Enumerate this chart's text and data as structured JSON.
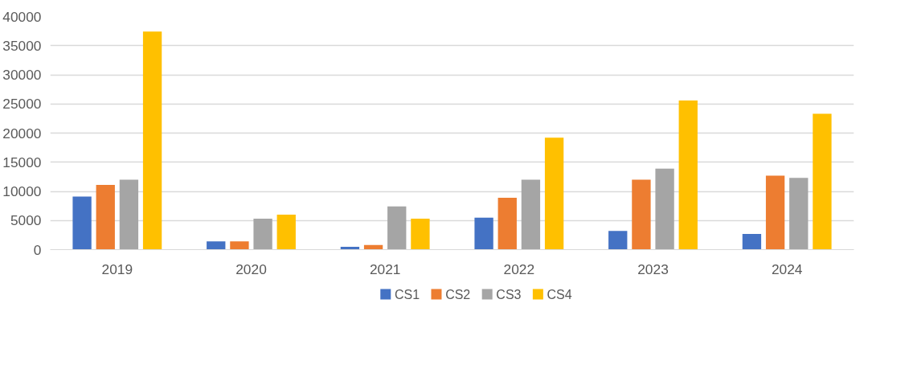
{
  "chart_data": {
    "type": "bar",
    "categories": [
      "2019",
      "2020",
      "2021",
      "2022",
      "2023",
      "2024"
    ],
    "series": [
      {
        "name": "CS1",
        "color": "#4472c4",
        "values": [
          9100,
          1400,
          500,
          5500,
          3200,
          2700
        ]
      },
      {
        "name": "CS2",
        "color": "#ed7d31",
        "values": [
          11100,
          1400,
          800,
          8900,
          12000,
          12700
        ]
      },
      {
        "name": "CS3",
        "color": "#a5a5a5",
        "values": [
          12000,
          5300,
          7400,
          12000,
          13900,
          12300
        ]
      },
      {
        "name": "CS4",
        "color": "#ffc000",
        "values": [
          37400,
          6000,
          5300,
          19200,
          25600,
          23300
        ]
      }
    ],
    "ylim": [
      0,
      40000
    ],
    "yticks": [
      0,
      5000,
      10000,
      15000,
      20000,
      25000,
      30000,
      35000,
      40000
    ],
    "grid": "y",
    "legend": "bottom"
  }
}
